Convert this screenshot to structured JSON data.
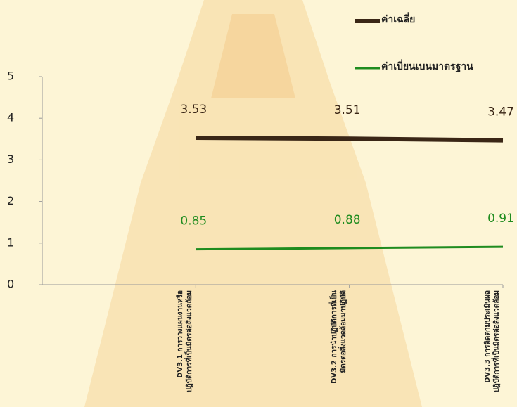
{
  "chart_data": {
    "type": "line",
    "categories": [
      "DV3.1 การวางแผนงานหรือปฏิบัติการที่เป็นมิตรต่อสิ่งแวดล้อม",
      "DV3.2 การนำปฏิบัติการที่เป็นมิตรต่อสิ่งแวดล้อมมาปฏิบัติ",
      "DV3.3 การติดตามประเมินผลปฏิบัติการที่เป็นมิตรต่อสิ่งแวดล้อม"
    ],
    "series": [
      {
        "name": "ค่าเฉลี่ย",
        "color": "#3a2616",
        "values": [
          3.53,
          3.51,
          3.47
        ]
      },
      {
        "name": "ค่าเบี่ยนเบนมาตรฐาน",
        "color": "#1f8c1f",
        "values": [
          0.85,
          0.88,
          0.91
        ]
      }
    ],
    "ylim": [
      0,
      5
    ],
    "yticks": [
      0,
      1,
      2,
      3,
      4,
      5
    ],
    "grid": false,
    "legend": "top-right"
  }
}
